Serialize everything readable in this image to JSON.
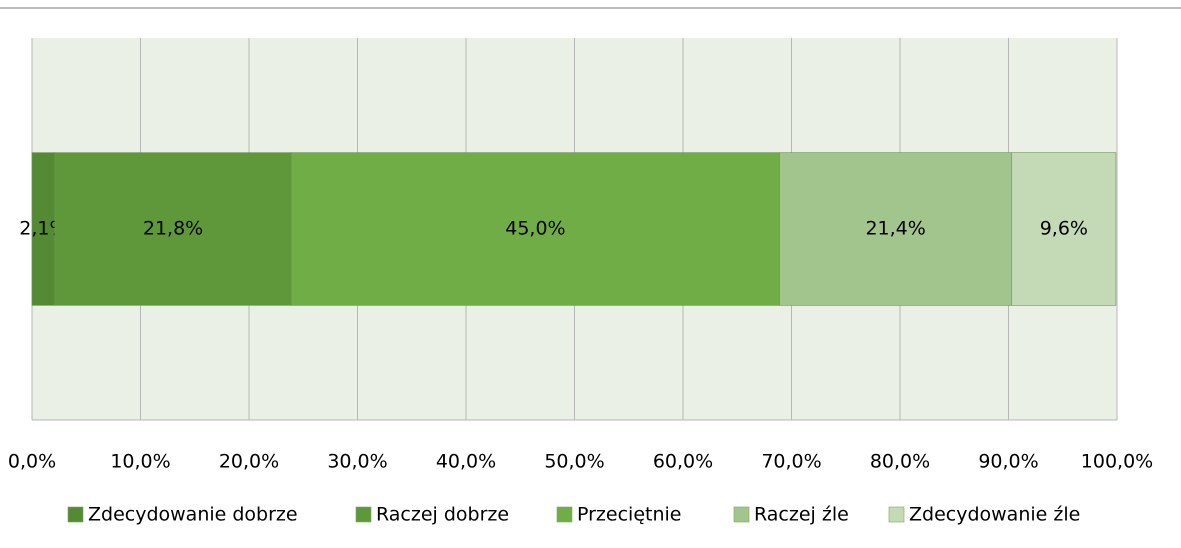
{
  "chart_data": {
    "type": "stacked_barh",
    "categories": [
      null
    ],
    "series": [
      {
        "name": "Zdecydowanie dobrze",
        "color": "#548a33",
        "values": [
          2.1
        ],
        "value_labels": [
          "2,1%"
        ]
      },
      {
        "name": "Raczej dobrze",
        "color": "#5f983b",
        "values": [
          21.8
        ],
        "value_labels": [
          "21,8%"
        ]
      },
      {
        "name": "Przeciętnie",
        "color": "#70ad47",
        "values": [
          45.0
        ],
        "value_labels": [
          "45,0%"
        ]
      },
      {
        "name": "Raczej źle",
        "color": "#a2c48d",
        "values": [
          21.4
        ],
        "value_labels": [
          "21,4%"
        ]
      },
      {
        "name": "Zdecydowanie źle",
        "color": "#c4dab6",
        "values": [
          9.6
        ],
        "value_labels": [
          "9,6%"
        ]
      }
    ],
    "xlim": [
      0,
      100
    ],
    "xticks": [
      {
        "value": 0,
        "label": "0,0%"
      },
      {
        "value": 10,
        "label": "10,0%"
      },
      {
        "value": 20,
        "label": "20,0%"
      },
      {
        "value": 30,
        "label": "30,0%"
      },
      {
        "value": 40,
        "label": "40,0%"
      },
      {
        "value": 50,
        "label": "50,0%"
      },
      {
        "value": 60,
        "label": "60,0%"
      },
      {
        "value": 70,
        "label": "70,0%"
      },
      {
        "value": 80,
        "label": "80,0%"
      },
      {
        "value": 90,
        "label": "90,0%"
      },
      {
        "value": 100,
        "label": "100,0%"
      }
    ],
    "grid": true,
    "legend": "bottom"
  }
}
